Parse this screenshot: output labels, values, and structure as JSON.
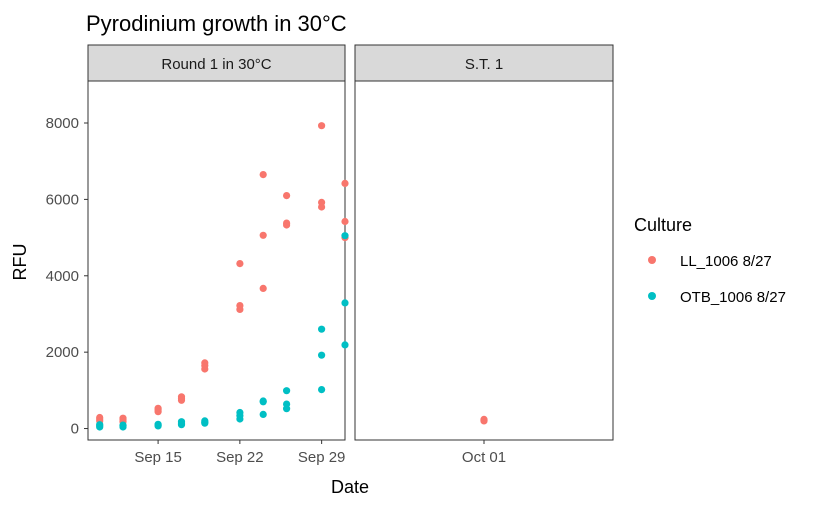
{
  "colors": {
    "LL": "#F8766D",
    "OTB": "#00BFC4",
    "strip_bg": "#D9D9D9",
    "panel_border": "#333333",
    "tick": "#333333"
  },
  "chart_data": {
    "type": "scatter",
    "title": "Pyrodinium growth in 30°C",
    "xlabel": "Date",
    "ylabel": "RFU",
    "grid": false,
    "legend": {
      "title": "Culture",
      "placement": "right",
      "entries": [
        "LL_1006 8/27",
        "OTB_1006 8/27"
      ]
    },
    "ylim": [
      -300,
      9100
    ],
    "yticks": [
      0,
      2000,
      4000,
      6000,
      8000
    ],
    "yticklabels": [
      "0",
      "2000",
      "4000",
      "6000",
      "8000"
    ],
    "panels": [
      {
        "strip": "Round 1 in 30°C",
        "xlim": [
          "2020-09-09",
          "2020-10-01"
        ],
        "xticks": [
          "2020-09-15",
          "2020-09-22",
          "2020-09-29"
        ],
        "xticklabels": [
          "Sep 15",
          "Sep 22",
          "Sep 29"
        ],
        "series": [
          {
            "name": "LL_1006 8/27",
            "color_key": "LL",
            "points": [
              {
                "x": "2020-09-10",
                "y": 200
              },
              {
                "x": "2020-09-10",
                "y": 250
              },
              {
                "x": "2020-09-10",
                "y": 290
              },
              {
                "x": "2020-09-12",
                "y": 180
              },
              {
                "x": "2020-09-12",
                "y": 230
              },
              {
                "x": "2020-09-12",
                "y": 270
              },
              {
                "x": "2020-09-15",
                "y": 440
              },
              {
                "x": "2020-09-15",
                "y": 490
              },
              {
                "x": "2020-09-15",
                "y": 530
              },
              {
                "x": "2020-09-17",
                "y": 740
              },
              {
                "x": "2020-09-17",
                "y": 790
              },
              {
                "x": "2020-09-17",
                "y": 830
              },
              {
                "x": "2020-09-19",
                "y": 1560
              },
              {
                "x": "2020-09-19",
                "y": 1650
              },
              {
                "x": "2020-09-19",
                "y": 1720
              },
              {
                "x": "2020-09-22",
                "y": 3120
              },
              {
                "x": "2020-09-22",
                "y": 3220
              },
              {
                "x": "2020-09-22",
                "y": 4320
              },
              {
                "x": "2020-09-24",
                "y": 3670
              },
              {
                "x": "2020-09-24",
                "y": 5060
              },
              {
                "x": "2020-09-24",
                "y": 6650
              },
              {
                "x": "2020-09-26",
                "y": 5330
              },
              {
                "x": "2020-09-26",
                "y": 5380
              },
              {
                "x": "2020-09-26",
                "y": 6100
              },
              {
                "x": "2020-09-29",
                "y": 5800
              },
              {
                "x": "2020-09-29",
                "y": 5920
              },
              {
                "x": "2020-09-29",
                "y": 7930
              },
              {
                "x": "2020-10-01",
                "y": 5000
              },
              {
                "x": "2020-10-01",
                "y": 5420
              },
              {
                "x": "2020-10-01",
                "y": 6420
              }
            ]
          },
          {
            "name": "OTB_1006 8/27",
            "color_key": "OTB",
            "points": [
              {
                "x": "2020-09-10",
                "y": 40
              },
              {
                "x": "2020-09-10",
                "y": 70
              },
              {
                "x": "2020-09-10",
                "y": 100
              },
              {
                "x": "2020-09-12",
                "y": 40
              },
              {
                "x": "2020-09-12",
                "y": 70
              },
              {
                "x": "2020-09-12",
                "y": 90
              },
              {
                "x": "2020-09-15",
                "y": 70
              },
              {
                "x": "2020-09-15",
                "y": 90
              },
              {
                "x": "2020-09-15",
                "y": 110
              },
              {
                "x": "2020-09-17",
                "y": 100
              },
              {
                "x": "2020-09-17",
                "y": 140
              },
              {
                "x": "2020-09-17",
                "y": 180
              },
              {
                "x": "2020-09-19",
                "y": 140
              },
              {
                "x": "2020-09-19",
                "y": 170
              },
              {
                "x": "2020-09-19",
                "y": 200
              },
              {
                "x": "2020-09-22",
                "y": 250
              },
              {
                "x": "2020-09-22",
                "y": 340
              },
              {
                "x": "2020-09-22",
                "y": 420
              },
              {
                "x": "2020-09-24",
                "y": 370
              },
              {
                "x": "2020-09-24",
                "y": 700
              },
              {
                "x": "2020-09-24",
                "y": 720
              },
              {
                "x": "2020-09-26",
                "y": 520
              },
              {
                "x": "2020-09-26",
                "y": 640
              },
              {
                "x": "2020-09-26",
                "y": 990
              },
              {
                "x": "2020-09-29",
                "y": 1020
              },
              {
                "x": "2020-09-29",
                "y": 1920
              },
              {
                "x": "2020-09-29",
                "y": 2600
              },
              {
                "x": "2020-10-01",
                "y": 2190
              },
              {
                "x": "2020-10-01",
                "y": 3290
              },
              {
                "x": "2020-10-01",
                "y": 5050
              }
            ]
          }
        ]
      },
      {
        "strip": "S.T. 1",
        "xlim": [
          "2020-09-25",
          "2020-10-07"
        ],
        "xticks": [
          "2020-10-01"
        ],
        "xticklabels": [
          "Oct 01"
        ],
        "series": [
          {
            "name": "LL_1006 8/27",
            "color_key": "LL",
            "points": [
              {
                "x": "2020-10-01",
                "y": 200
              },
              {
                "x": "2020-10-01",
                "y": 220
              },
              {
                "x": "2020-10-01",
                "y": 240
              }
            ]
          }
        ]
      }
    ]
  }
}
